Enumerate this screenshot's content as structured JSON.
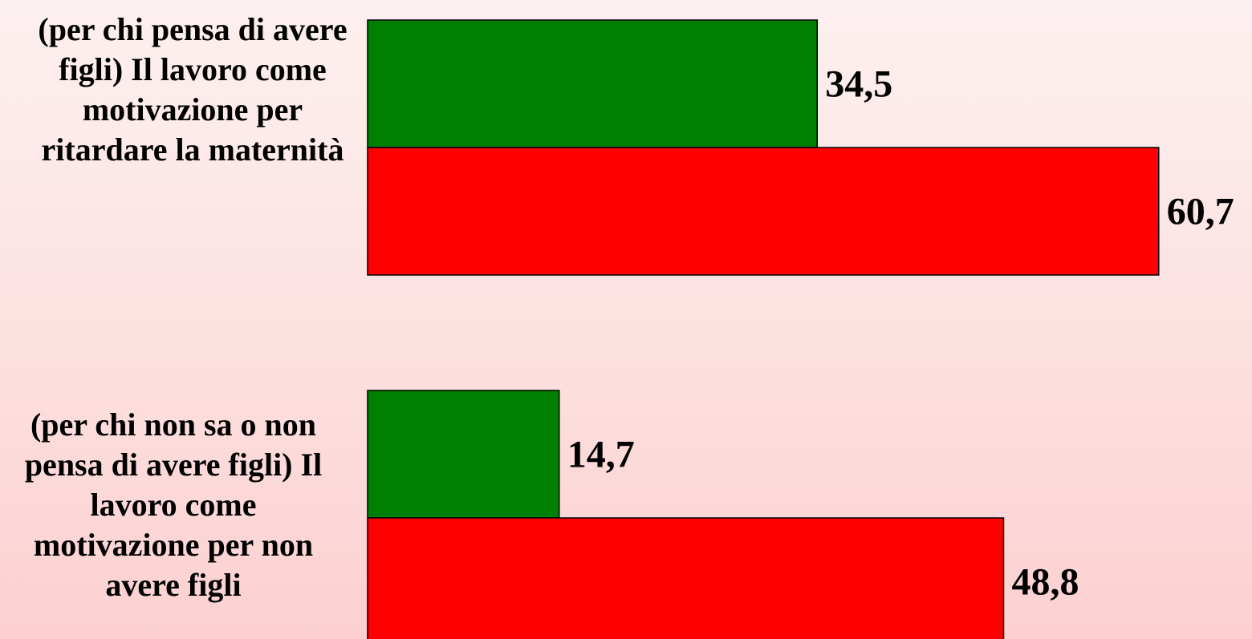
{
  "chart_data": {
    "type": "bar",
    "orientation": "horizontal",
    "categories": [
      "(per chi pensa di avere figli) Il lavoro come motivazione per ritardare la maternità",
      "(per chi non sa o non pensa di avere figli) Il lavoro come motivazione per non avere figli"
    ],
    "series": [
      {
        "values": [
          34.5,
          14.7
        ],
        "color": "#008000"
      },
      {
        "values": [
          60.7,
          48.8
        ],
        "color": "#ff0000"
      }
    ],
    "data_labels": [
      [
        "34,5",
        "14,7"
      ],
      [
        "60,7",
        "48,8"
      ]
    ],
    "xlim": [
      0,
      64
    ],
    "grid": false,
    "legend": "none"
  }
}
